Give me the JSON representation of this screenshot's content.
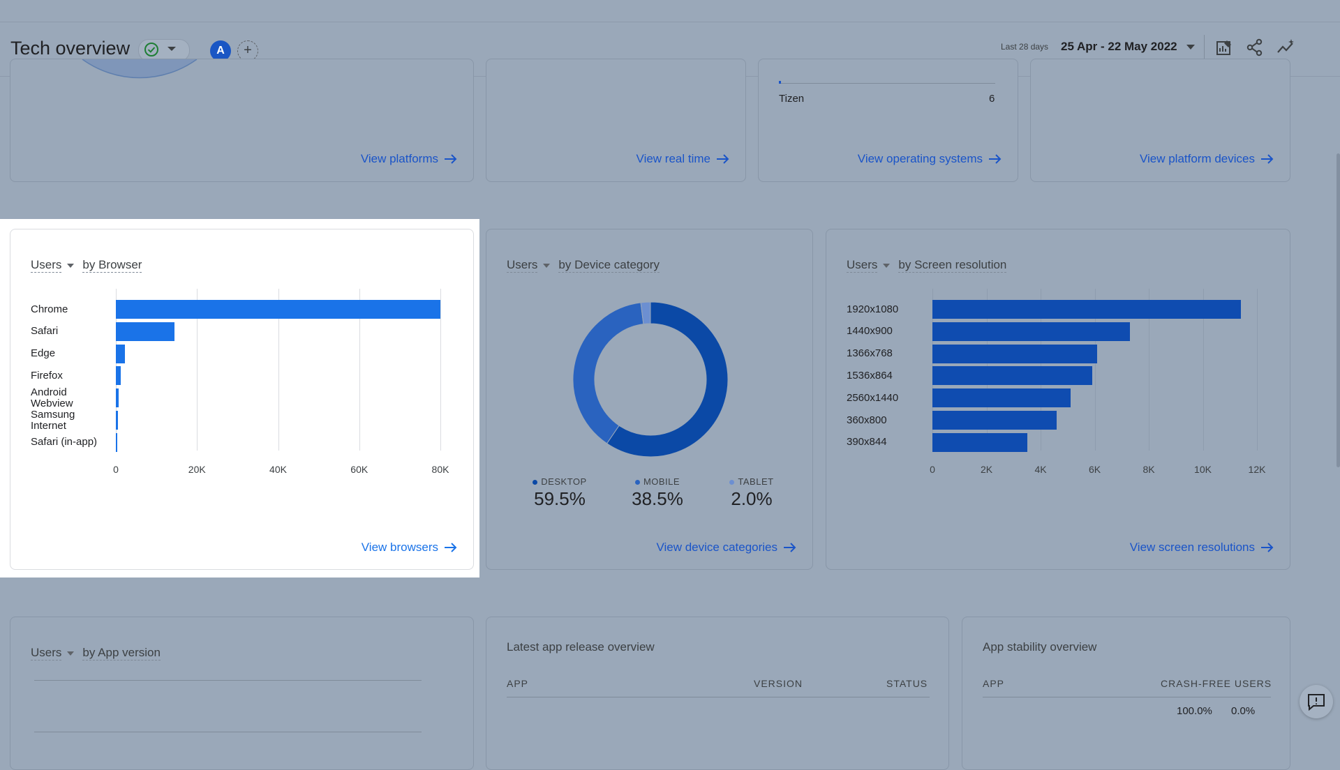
{
  "header": {
    "title": "Tech overview",
    "avatar_letter": "A",
    "add_symbol": "+",
    "date_caption": "Last 28 days",
    "date_range": "25 Apr - 22 May 2022"
  },
  "top_cards": {
    "platforms_link": "View platforms",
    "realtime_link": "View real time",
    "os_row_label": "Tizen",
    "os_row_value": "6",
    "os_link": "View operating systems",
    "platform_devices_link": "View platform devices"
  },
  "browser_card": {
    "metric": "Users",
    "dimension": "by Browser",
    "link": "View browsers",
    "chart_data": {
      "type": "bar",
      "orientation": "horizontal",
      "categories": [
        "Chrome",
        "Safari",
        "Edge",
        "Firefox",
        "Android Webview",
        "Samsung Internet",
        "Safari (in-app)"
      ],
      "values": [
        80000,
        14500,
        2300,
        1200,
        700,
        600,
        400
      ],
      "xlim": [
        0,
        80000
      ],
      "ticks": [
        "0",
        "20K",
        "40K",
        "60K",
        "80K"
      ],
      "grid": true
    }
  },
  "device_card": {
    "metric": "Users",
    "dimension": "by Device category",
    "link": "View device categories",
    "chart_data": {
      "type": "pie",
      "style": "donut",
      "categories": [
        "DESKTOP",
        "MOBILE",
        "TABLET"
      ],
      "values": [
        59.5,
        38.5,
        2.0
      ],
      "labels": [
        "59.5%",
        "38.5%",
        "2.0%"
      ],
      "colors": [
        "#0b49a6",
        "#2a63bf",
        "#6c8fd1"
      ]
    }
  },
  "resolution_card": {
    "metric": "Users",
    "dimension": "by Screen resolution",
    "link": "View screen resolutions",
    "chart_data": {
      "type": "bar",
      "orientation": "horizontal",
      "categories": [
        "1920x1080",
        "1440x900",
        "1366x768",
        "1536x864",
        "2560x1440",
        "360x800",
        "390x844"
      ],
      "values": [
        11400,
        7300,
        6100,
        5900,
        5100,
        4600,
        3500
      ],
      "xlim": [
        0,
        12000
      ],
      "ticks": [
        "0",
        "2K",
        "4K",
        "6K",
        "8K",
        "10K",
        "12K"
      ],
      "grid": true
    }
  },
  "bottom_cards": {
    "app_version_metric": "Users",
    "app_version_dimension": "by App version",
    "release_title": "Latest app release overview",
    "release_cols": [
      "APP",
      "VERSION",
      "STATUS"
    ],
    "stability_title": "App stability overview",
    "stability_cols": [
      "APP",
      "CRASH-FREE USERS"
    ],
    "stability_values": [
      "100.0%",
      "0.0%"
    ]
  },
  "colors": {
    "accent": "#1a73e8",
    "bar_highlight": "#1a73e8",
    "bar_dim": "#0f4cb0"
  }
}
